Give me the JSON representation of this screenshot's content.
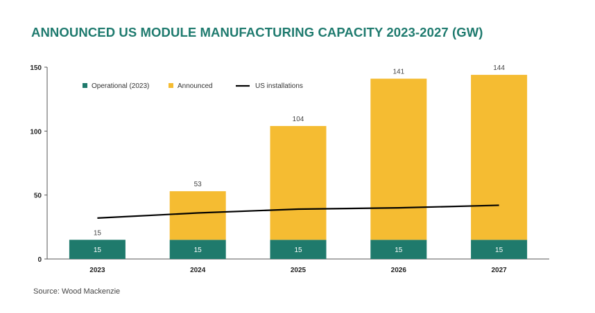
{
  "title": "ANNOUNCED US MODULE MANUFACTURING CAPACITY 2023-2027 (GW)",
  "source": "Source: Wood Mackenzie",
  "colors": {
    "title": "#1e7a6e",
    "operational": "#1f7a6c",
    "announced": "#f5bc32",
    "installations": "#000000"
  },
  "chart_data": {
    "type": "bar",
    "stacked": true,
    "title": "ANNOUNCED US MODULE MANUFACTURING CAPACITY 2023-2027 (GW)",
    "xlabel": "",
    "ylabel": "",
    "categories": [
      "2023",
      "2024",
      "2025",
      "2026",
      "2027"
    ],
    "ylim": [
      0,
      150
    ],
    "yticks": [
      0,
      50,
      100,
      150
    ],
    "series": [
      {
        "name": "Operational (2023)",
        "values": [
          15,
          15,
          15,
          15,
          15
        ],
        "color": "#1f7a6c"
      },
      {
        "name": "Announced",
        "values": [
          0,
          38,
          89,
          126,
          129
        ],
        "color": "#f5bc32"
      }
    ],
    "totals": [
      15,
      53,
      104,
      141,
      144
    ],
    "line_series": {
      "name": "US installations",
      "type": "line",
      "values": [
        32,
        36,
        39,
        40,
        42
      ],
      "color": "#000000"
    },
    "legend": {
      "placement": "top-left",
      "items": [
        "Operational (2023)",
        "Announced",
        "US installations"
      ]
    },
    "grid": false
  }
}
